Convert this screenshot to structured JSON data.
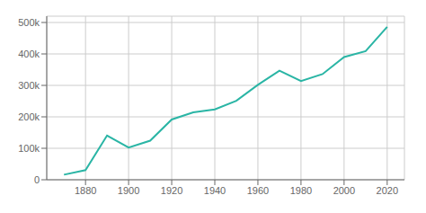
{
  "chart_data": {
    "type": "line",
    "x": [
      1870,
      1880,
      1890,
      1900,
      1910,
      1920,
      1930,
      1940,
      1950,
      1960,
      1970,
      1980,
      1990,
      2000,
      2010,
      2020
    ],
    "values": [
      16083,
      30518,
      140452,
      102555,
      124096,
      191601,
      214006,
      223844,
      251117,
      301598,
      346929,
      313939,
      335795,
      390007,
      408958,
      486051
    ],
    "color": "#2ab5a5",
    "xlim": [
      1862,
      2028
    ],
    "xticks": [
      1880,
      1900,
      1920,
      1940,
      1960,
      1980,
      2000,
      2020
    ],
    "ylim": [
      0,
      520000
    ],
    "yticks": [
      0,
      {
        "value": 100000,
        "label": "100k"
      },
      {
        "value": 200000,
        "label": "200k"
      },
      {
        "value": 300000,
        "label": "300k"
      },
      {
        "value": 400000,
        "label": "400k"
      },
      {
        "value": 500000,
        "label": "500k"
      }
    ],
    "grid": true
  }
}
